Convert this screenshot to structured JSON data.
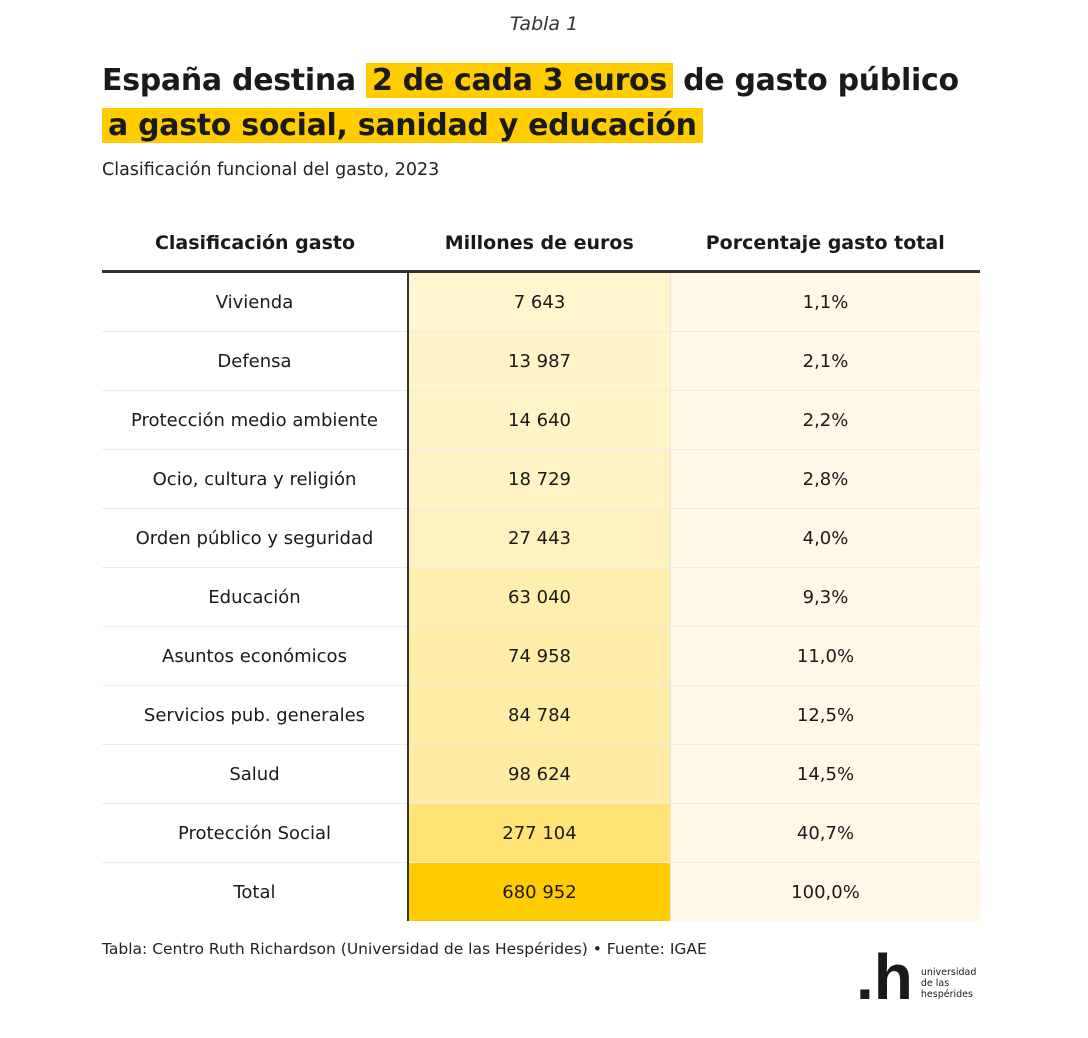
{
  "kicker": "Tabla 1",
  "title": {
    "part1": "España destina ",
    "highlight1": "2 de cada 3 euros",
    "part2": " de gasto público",
    "highlight2": "a gasto social, sanidad y educación"
  },
  "subtitle": "Clasificación funcional del gasto, 2023",
  "source": "Tabla: Centro Ruth Richardson (Universidad de las Hespérides) • Fuente: IGAE",
  "logo": {
    "mark": ".h",
    "text": [
      "universidad",
      "de las",
      "hespérides"
    ]
  },
  "colors": {
    "accent": "#ffcc00",
    "heat_low": "#fff8e1",
    "percent_bg": "#fff8e6"
  },
  "chart_data": {
    "type": "table",
    "columns": [
      "Clasificación gasto",
      "Millones de euros",
      "Porcentaje gasto total"
    ],
    "rows": [
      [
        "Vivienda",
        "7 643",
        "1,1%"
      ],
      [
        "Defensa",
        "13 987",
        "2,1%"
      ],
      [
        "Protección medio ambiente",
        "14 640",
        "2,2%"
      ],
      [
        "Ocio, cultura y religión",
        "18 729",
        "2,8%"
      ],
      [
        "Orden público y seguridad",
        "27 443",
        "4,0%"
      ],
      [
        "Educación",
        "63 040",
        "9,3%"
      ],
      [
        "Asuntos económicos",
        "74 958",
        "11,0%"
      ],
      [
        "Servicios pub. generales",
        "84 784",
        "12,5%"
      ],
      [
        "Salud",
        "98 624",
        "14,5%"
      ],
      [
        "Protección Social",
        "277 104",
        "40,7%"
      ],
      [
        "Total",
        "680 952",
        "100,0%"
      ]
    ]
  }
}
